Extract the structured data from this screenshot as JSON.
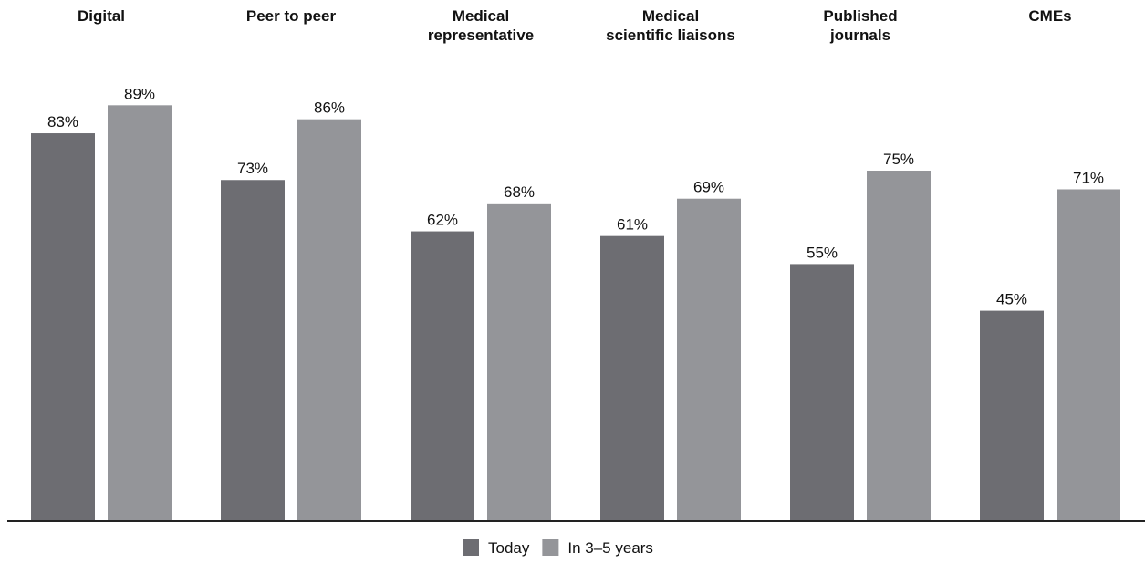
{
  "chart_data": {
    "type": "bar",
    "categories": [
      [
        "Digital"
      ],
      [
        "Peer to peer"
      ],
      [
        "Medical",
        "representative"
      ],
      [
        "Medical",
        "scientific liaisons"
      ],
      [
        "Published",
        "journals"
      ],
      [
        "CMEs"
      ]
    ],
    "series": [
      {
        "name": "Today",
        "color": "#6d6d72",
        "values": [
          83,
          73,
          62,
          61,
          55,
          45
        ]
      },
      {
        "name": "In 3–5 years",
        "color": "#949599",
        "values": [
          89,
          86,
          68,
          69,
          75,
          71
        ]
      }
    ],
    "value_suffix": "%",
    "ylim": [
      0,
      100
    ],
    "grid": false,
    "legend_position": "bottom-center",
    "axis_color": "#222222"
  }
}
